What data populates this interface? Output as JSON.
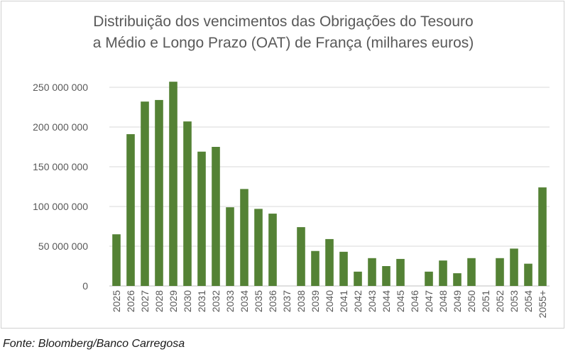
{
  "chart_data": {
    "type": "bar",
    "title_line1": "Distribuição dos vencimentos das Obrigações do Tesouro",
    "title_line2": "a Médio e Longo Prazo (OAT) de França (milhares euros)",
    "xlabel": "",
    "ylabel": "",
    "ylim": [
      0,
      250000000
    ],
    "yticks": [
      0,
      50000000,
      100000000,
      150000000,
      200000000,
      250000000
    ],
    "ytick_labels": [
      "0",
      "50 000 000",
      "100 000 000",
      "150 000 000",
      "200 000 000",
      "250 000 000"
    ],
    "grid": true,
    "legend": "none",
    "bar_color": "#548235",
    "categories": [
      "2025",
      "2026",
      "2027",
      "2028",
      "2029",
      "2030",
      "2031",
      "2032",
      "2033",
      "2034",
      "2035",
      "2036",
      "2037",
      "2038",
      "2039",
      "2040",
      "2041",
      "2042",
      "2043",
      "2044",
      "2045",
      "2046",
      "2047",
      "2048",
      "2049",
      "2050",
      "2051",
      "2052",
      "2053",
      "2054",
      "2055+"
    ],
    "values": [
      65000000,
      191000000,
      232000000,
      234000000,
      257000000,
      207000000,
      169000000,
      175000000,
      99000000,
      122000000,
      97000000,
      91000000,
      0,
      74000000,
      44000000,
      59000000,
      43000000,
      18000000,
      35000000,
      25000000,
      34000000,
      0,
      18000000,
      32000000,
      16000000,
      35000000,
      0,
      35000000,
      47000000,
      28000000,
      124000000
    ]
  },
  "source": "Fonte: Bloomberg/Banco Carregosa"
}
